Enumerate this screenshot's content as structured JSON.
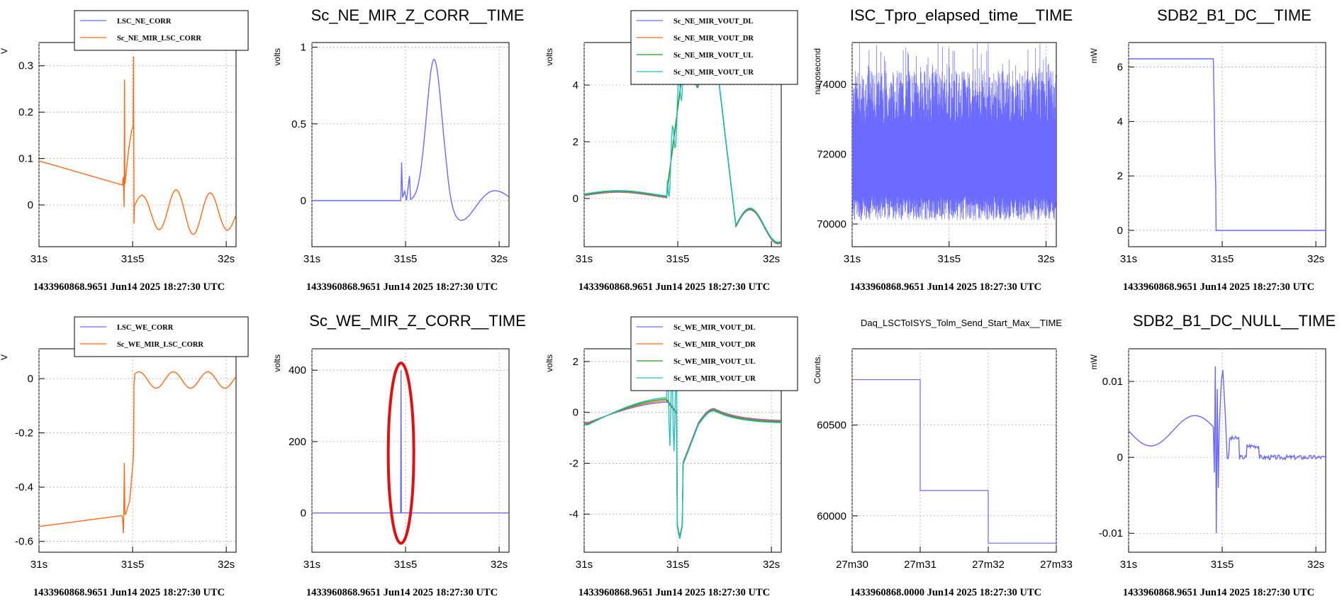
{
  "chart_data": [
    {
      "type": "line",
      "title": "",
      "ylabel": "V",
      "xticks": [
        "31s",
        "31s5",
        "32s"
      ],
      "yticks": [
        "0",
        "0.1",
        "0.2",
        "0.3"
      ],
      "ylim": [
        -0.09,
        0.35
      ],
      "legend": [
        "LSC_NE_CORR",
        "Sc_NE_MIR_LSC_CORR"
      ],
      "series": [
        {
          "name": "LSC_NE_CORR",
          "color": "#6a6aff"
        },
        {
          "name": "Sc_NE_MIR_LSC_CORR",
          "color": "#ff6a1a"
        }
      ],
      "footer": "1433960868.9651 Jun14 2025 18:27:30 UTC"
    },
    {
      "type": "line",
      "title": "Sc_NE_MIR_Z_CORR__TIME",
      "ylabel": "volts",
      "xticks": [
        "31s",
        "31s5",
        "32s"
      ],
      "yticks": [
        "0",
        "0.5",
        "1"
      ],
      "ylim": [
        -0.3,
        1.03
      ],
      "series": [
        {
          "color": "#6a6aff"
        }
      ],
      "footer": "1433960868.9651 Jun14 2025 18:27:30 UTC"
    },
    {
      "type": "line",
      "title": "",
      "ylabel": "volts",
      "xticks": [
        "31s",
        "31s5",
        "32s"
      ],
      "yticks": [
        "0",
        "2",
        "4"
      ],
      "ylim": [
        -1.7,
        5.5
      ],
      "legend": [
        "Sc_NE_MIR_VOUT_DL",
        "Sc_NE_MIR_VOUT_DR",
        "Sc_NE_MIR_VOUT_UL",
        "Sc_NE_MIR_VOUT_UR"
      ],
      "series": [
        {
          "name": "Sc_NE_MIR_VOUT_DL",
          "color": "#6a6aff"
        },
        {
          "name": "Sc_NE_MIR_VOUT_DR",
          "color": "#ff6a1a"
        },
        {
          "name": "Sc_NE_MIR_VOUT_UL",
          "color": "#1aa01a"
        },
        {
          "name": "Sc_NE_MIR_VOUT_UR",
          "color": "#20c0c0"
        }
      ],
      "footer": "1433960868.9651 Jun14 2025 18:27:30 UTC"
    },
    {
      "type": "line",
      "title": "ISC_Tpro_elapsed_time__TIME",
      "ylabel": "nanosecond",
      "xticks": [
        "31s",
        "31s5",
        "32s"
      ],
      "yticks": [
        "70000",
        "72000",
        "74000"
      ],
      "ylim": [
        69350,
        75200
      ],
      "series": [
        {
          "color": "#6a6aff"
        }
      ],
      "footer": "1433960868.9651 Jun14 2025 18:27:30 UTC"
    },
    {
      "type": "line",
      "title": "SDB2_B1_DC__TIME",
      "ylabel": "mW",
      "xticks": [
        "31s",
        "31s5",
        "32s"
      ],
      "yticks": [
        "0",
        "2",
        "4",
        "6"
      ],
      "ylim": [
        -0.6,
        6.9
      ],
      "series": [
        {
          "color": "#6a6aff"
        }
      ],
      "footer": "1433960868.9651 Jun14 2025 18:27:30 UTC"
    },
    {
      "type": "line",
      "title": "",
      "ylabel": "V",
      "xticks": [
        "31s",
        "31s5",
        "32s"
      ],
      "yticks": [
        "-0.6",
        "-0.4",
        "-0.2",
        "0"
      ],
      "ylim": [
        -0.64,
        0.11
      ],
      "legend": [
        "LSC_WE_CORR",
        "Sc_WE_MIR_LSC_CORR"
      ],
      "series": [
        {
          "name": "LSC_WE_CORR",
          "color": "#6a6aff"
        },
        {
          "name": "Sc_WE_MIR_LSC_CORR",
          "color": "#ff6a1a"
        }
      ],
      "footer": "1433960868.9651 Jun14 2025 18:27:30 UTC"
    },
    {
      "type": "line",
      "title": "Sc_WE_MIR_Z_CORR__TIME",
      "ylabel": "volts",
      "xticks": [
        "31s",
        "31s5",
        "32s"
      ],
      "yticks": [
        "0",
        "200",
        "400"
      ],
      "ylim": [
        -110,
        460
      ],
      "series": [
        {
          "color": "#6a6aff"
        }
      ],
      "footer": "1433960868.9651 Jun14 2025 18:27:30 UTC"
    },
    {
      "type": "line",
      "title": "",
      "ylabel": "volts",
      "xticks": [
        "31s",
        "31s5",
        "32s"
      ],
      "yticks": [
        "-4",
        "-2",
        "0",
        "2"
      ],
      "ylim": [
        -5.5,
        2.5
      ],
      "legend": [
        "Sc_WE_MIR_VOUT_DL",
        "Sc_WE_MIR_VOUT_DR",
        "Sc_WE_MIR_VOUT_UL",
        "Sc_WE_MIR_VOUT_UR"
      ],
      "series": [
        {
          "name": "Sc_WE_MIR_VOUT_DL",
          "color": "#6a6aff"
        },
        {
          "name": "Sc_WE_MIR_VOUT_DR",
          "color": "#ff6a1a"
        },
        {
          "name": "Sc_WE_MIR_VOUT_UL",
          "color": "#1aa01a"
        },
        {
          "name": "Sc_WE_MIR_VOUT_UR",
          "color": "#20c0c0"
        }
      ],
      "footer": "1433960868.9651 Jun14 2025 18:27:30 UTC"
    },
    {
      "type": "line",
      "title": "Daq_LSCToISYS_Tolm_Send_Start_Max__TIME",
      "ylabel": "Counts.",
      "xticks": [
        "27m30",
        "27m31",
        "27m32",
        "27m33"
      ],
      "yticks": [
        "60000",
        "60500"
      ],
      "ylim": [
        59800,
        60920
      ],
      "series": [
        {
          "color": "#6a6aff",
          "x": [
            0,
            1,
            2,
            3
          ],
          "y": [
            60750,
            60140,
            59850,
            59850
          ]
        }
      ],
      "footer": "1433960868.0000 Jun14 2025 18:27:30 UTC"
    },
    {
      "type": "line",
      "title": "SDB2_B1_DC_NULL__TIME",
      "ylabel": "mW",
      "xticks": [
        "31s",
        "31s5",
        "32s"
      ],
      "yticks": [
        "-0.01",
        "0",
        "0.01"
      ],
      "ylim": [
        -0.0125,
        0.0143
      ],
      "series": [
        {
          "color": "#6a6aff"
        }
      ],
      "footer": "1433960868.9651 Jun14 2025 18:27:30 UTC"
    }
  ]
}
